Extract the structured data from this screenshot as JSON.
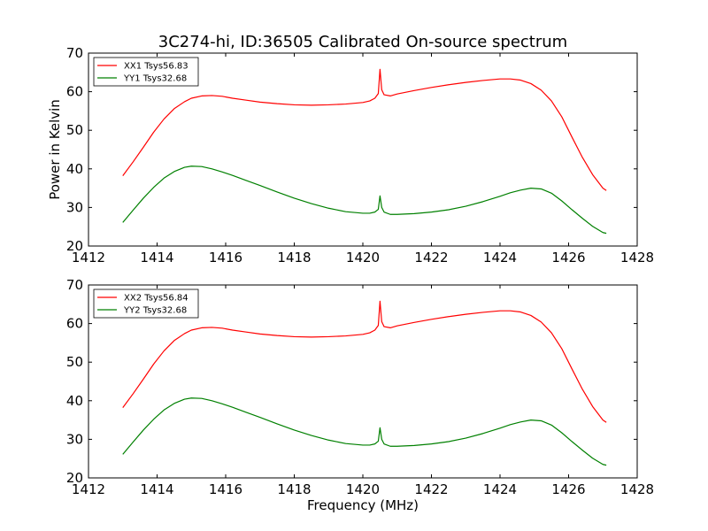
{
  "figure": {
    "title": "3C274-hi, ID:36505 Calibrated On-source spectrum",
    "xlabel": "Frequency (MHz)",
    "ylabel": "Power in Kelvin"
  },
  "chart_data": [
    {
      "type": "line",
      "xlim": [
        1412,
        1428
      ],
      "ylim": [
        20,
        70
      ],
      "x_ticks": [
        1412,
        1414,
        1416,
        1418,
        1420,
        1422,
        1424,
        1426,
        1428
      ],
      "y_ticks": [
        20,
        30,
        40,
        50,
        60,
        70
      ],
      "legend_position": "top-left",
      "grid": false,
      "series": [
        {
          "name": "XX1 Tsys56.83",
          "color": "#ff0000",
          "x": [
            1413.0,
            1413.3,
            1413.6,
            1413.9,
            1414.2,
            1414.5,
            1414.8,
            1415.0,
            1415.3,
            1415.6,
            1415.9,
            1416.2,
            1416.6,
            1417.0,
            1417.5,
            1418.0,
            1418.5,
            1419.0,
            1419.5,
            1420.0,
            1420.2,
            1420.35,
            1420.45,
            1420.5,
            1420.55,
            1420.62,
            1420.8,
            1421.0,
            1421.5,
            1422.0,
            1422.5,
            1423.0,
            1423.5,
            1424.0,
            1424.3,
            1424.6,
            1424.9,
            1425.2,
            1425.5,
            1425.8,
            1426.1,
            1426.4,
            1426.7,
            1427.0,
            1427.1
          ],
          "y": [
            38.2,
            41.8,
            45.6,
            49.5,
            52.9,
            55.6,
            57.4,
            58.3,
            58.9,
            59.0,
            58.8,
            58.3,
            57.8,
            57.3,
            56.9,
            56.6,
            56.5,
            56.6,
            56.8,
            57.2,
            57.6,
            58.3,
            59.5,
            65.8,
            60.5,
            59.2,
            58.9,
            59.4,
            60.3,
            61.1,
            61.8,
            62.4,
            62.9,
            63.3,
            63.3,
            63.0,
            62.1,
            60.4,
            57.6,
            53.5,
            48.2,
            43.0,
            38.5,
            35.0,
            34.4
          ]
        },
        {
          "name": "YY1 Tsys32.68",
          "color": "#008000",
          "x": [
            1413.0,
            1413.3,
            1413.6,
            1413.9,
            1414.2,
            1414.5,
            1414.8,
            1415.0,
            1415.3,
            1415.6,
            1415.9,
            1416.2,
            1416.6,
            1417.0,
            1417.5,
            1418.0,
            1418.5,
            1419.0,
            1419.5,
            1420.0,
            1420.2,
            1420.35,
            1420.45,
            1420.5,
            1420.55,
            1420.62,
            1420.8,
            1421.0,
            1421.5,
            1422.0,
            1422.5,
            1423.0,
            1423.5,
            1424.0,
            1424.3,
            1424.6,
            1424.9,
            1425.2,
            1425.5,
            1425.8,
            1426.1,
            1426.4,
            1426.7,
            1427.0,
            1427.1
          ],
          "y": [
            26.1,
            29.3,
            32.4,
            35.2,
            37.6,
            39.3,
            40.4,
            40.7,
            40.6,
            40.0,
            39.2,
            38.3,
            37.0,
            35.7,
            34.0,
            32.4,
            31.0,
            29.8,
            28.9,
            28.5,
            28.5,
            28.8,
            29.5,
            33.0,
            30.0,
            28.8,
            28.2,
            28.2,
            28.4,
            28.8,
            29.4,
            30.3,
            31.5,
            32.9,
            33.8,
            34.5,
            35.0,
            34.8,
            33.7,
            31.7,
            29.4,
            27.2,
            25.1,
            23.5,
            23.3
          ]
        }
      ]
    },
    {
      "type": "line",
      "xlim": [
        1412,
        1428
      ],
      "ylim": [
        20,
        70
      ],
      "x_ticks": [
        1412,
        1414,
        1416,
        1418,
        1420,
        1422,
        1424,
        1426,
        1428
      ],
      "y_ticks": [
        20,
        30,
        40,
        50,
        60,
        70
      ],
      "legend_position": "top-left",
      "grid": false,
      "series": [
        {
          "name": "XX2 Tsys56.84",
          "color": "#ff0000",
          "x": [
            1413.0,
            1413.3,
            1413.6,
            1413.9,
            1414.2,
            1414.5,
            1414.8,
            1415.0,
            1415.3,
            1415.6,
            1415.9,
            1416.2,
            1416.6,
            1417.0,
            1417.5,
            1418.0,
            1418.5,
            1419.0,
            1419.5,
            1420.0,
            1420.2,
            1420.35,
            1420.45,
            1420.5,
            1420.55,
            1420.62,
            1420.8,
            1421.0,
            1421.5,
            1422.0,
            1422.5,
            1423.0,
            1423.5,
            1424.0,
            1424.3,
            1424.6,
            1424.9,
            1425.2,
            1425.5,
            1425.8,
            1426.1,
            1426.4,
            1426.7,
            1427.0,
            1427.1
          ],
          "y": [
            38.2,
            41.8,
            45.6,
            49.5,
            52.9,
            55.6,
            57.4,
            58.3,
            58.9,
            59.0,
            58.8,
            58.3,
            57.8,
            57.3,
            56.9,
            56.6,
            56.5,
            56.6,
            56.8,
            57.2,
            57.6,
            58.3,
            59.5,
            65.8,
            60.5,
            59.2,
            58.9,
            59.4,
            60.3,
            61.1,
            61.8,
            62.4,
            62.9,
            63.3,
            63.3,
            63.0,
            62.1,
            60.4,
            57.6,
            53.5,
            48.2,
            43.0,
            38.5,
            35.0,
            34.4
          ]
        },
        {
          "name": "YY2 Tsys32.68",
          "color": "#008000",
          "x": [
            1413.0,
            1413.3,
            1413.6,
            1413.9,
            1414.2,
            1414.5,
            1414.8,
            1415.0,
            1415.3,
            1415.6,
            1415.9,
            1416.2,
            1416.6,
            1417.0,
            1417.5,
            1418.0,
            1418.5,
            1419.0,
            1419.5,
            1420.0,
            1420.2,
            1420.35,
            1420.45,
            1420.5,
            1420.55,
            1420.62,
            1420.8,
            1421.0,
            1421.5,
            1422.0,
            1422.5,
            1423.0,
            1423.5,
            1424.0,
            1424.3,
            1424.6,
            1424.9,
            1425.2,
            1425.5,
            1425.8,
            1426.1,
            1426.4,
            1426.7,
            1427.0,
            1427.1
          ],
          "y": [
            26.1,
            29.3,
            32.4,
            35.2,
            37.6,
            39.3,
            40.4,
            40.7,
            40.6,
            40.0,
            39.2,
            38.3,
            37.0,
            35.7,
            34.0,
            32.4,
            31.0,
            29.8,
            28.9,
            28.5,
            28.5,
            28.8,
            29.5,
            33.0,
            30.0,
            28.8,
            28.2,
            28.2,
            28.4,
            28.8,
            29.4,
            30.3,
            31.5,
            32.9,
            33.8,
            34.5,
            35.0,
            34.8,
            33.7,
            31.7,
            29.4,
            27.2,
            25.1,
            23.5,
            23.3
          ]
        }
      ]
    }
  ]
}
